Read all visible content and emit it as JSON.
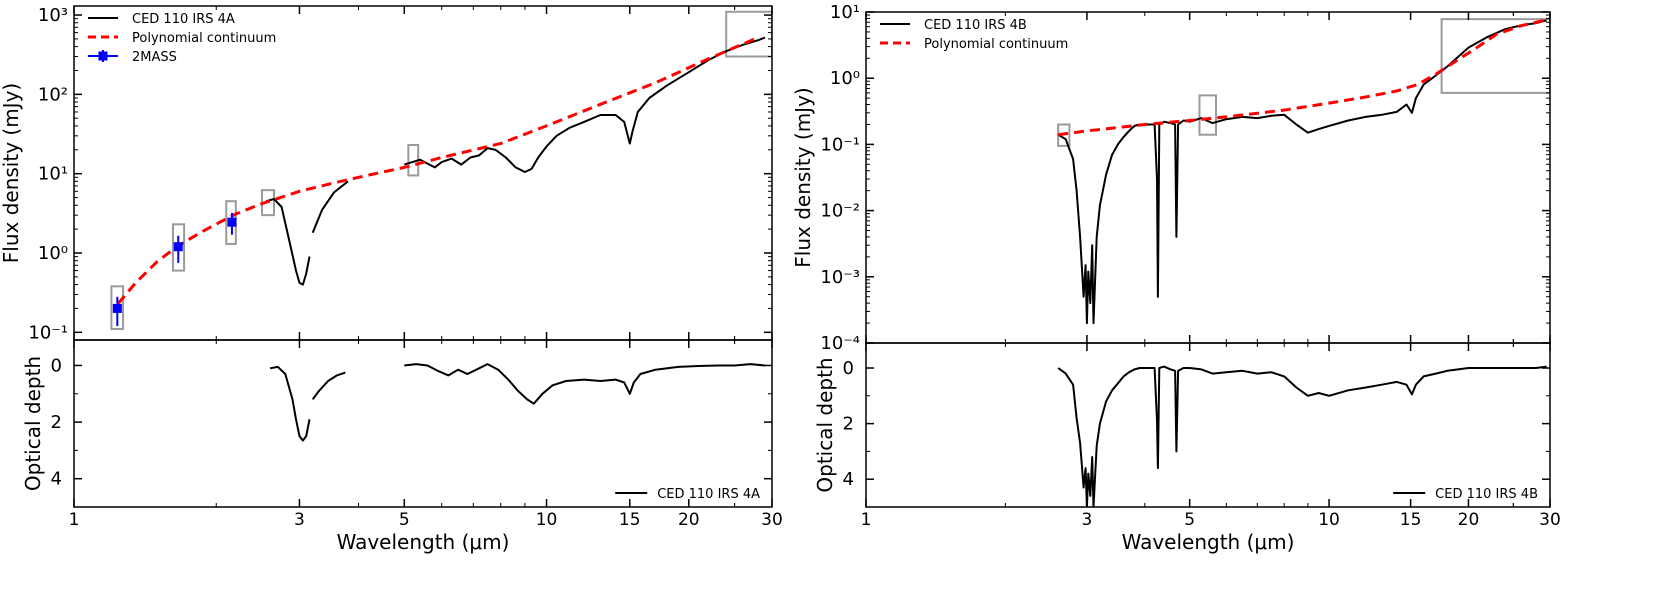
{
  "chart_data": [
    {
      "type": "line",
      "panel": "left",
      "xlabel": "Wavelength (μm)",
      "xscale": "log",
      "xlim": [
        1,
        30
      ],
      "xticks": [
        1,
        3,
        5,
        10,
        15,
        20,
        30
      ],
      "xtick_labels": [
        "1",
        "3",
        "5",
        "10",
        "15",
        "20",
        "30"
      ],
      "top": {
        "ylabel": "Flux density (mJy)",
        "yscale": "log",
        "ylim": [
          0.08,
          1300
        ],
        "yticks": [
          0.1,
          1,
          10,
          100,
          1000
        ],
        "ytick_labels": [
          "10⁻¹",
          "10⁰",
          "10¹",
          "10²",
          "10³"
        ],
        "legend_position": "top-left",
        "legend": [
          "CED 110 IRS 4A",
          "Polynomial continuum",
          "2MASS"
        ],
        "series": [
          {
            "name": "CED 110 IRS 4A",
            "style": "black-solid",
            "segments": [
              {
                "x": [
                  2.55,
                  2.65,
                  2.75,
                  2.85,
                  2.95,
                  3.0,
                  3.05,
                  3.1,
                  3.15
                ],
                "y": [
                  4.5,
                  4.8,
                  3.8,
                  1.5,
                  0.6,
                  0.42,
                  0.4,
                  0.55,
                  0.9
                ]
              },
              {
                "x": [
                  3.2,
                  3.35,
                  3.55,
                  3.8
                ],
                "y": [
                  1.8,
                  3.5,
                  5.8,
                  8.0
                ]
              },
              {
                "x": [
                  5.0,
                  5.4,
                  5.8,
                  6.0,
                  6.3,
                  6.6,
                  6.9,
                  7.2,
                  7.5,
                  7.8,
                  8.2,
                  8.6,
                  9.0,
                  9.3,
                  9.6,
                  10.0,
                  10.5,
                  11.2,
                  12.0,
                  13.0,
                  14.0,
                  14.6,
                  15.0,
                  15.2,
                  15.6,
                  16.5,
                  18.0,
                  20.0,
                  22.0,
                  24.0,
                  26.0,
                  28.0,
                  29.0
                ],
                "y": [
                  13.0,
                  15.0,
                  12.0,
                  14.0,
                  15.5,
                  13.0,
                  16.0,
                  17.0,
                  21.0,
                  20.0,
                  16.0,
                  12.0,
                  10.5,
                  11.5,
                  16.0,
                  22.0,
                  30.0,
                  38.0,
                  45.0,
                  55.0,
                  55.0,
                  45.0,
                  24.0,
                  34.0,
                  60.0,
                  90.0,
                  130.0,
                  190.0,
                  270.0,
                  350.0,
                  420.0,
                  480.0,
                  520.0
                ]
              }
            ]
          },
          {
            "name": "Polynomial continuum",
            "style": "red-dashed",
            "x": [
              1.24,
              1.35,
              1.5,
              1.65,
              1.85,
              2.05,
              2.2,
              2.5,
              3.0,
              3.5,
              4.0,
              5.0,
              6.0,
              8.0,
              10.0,
              13.0,
              17.0,
              22.0,
              28.0
            ],
            "y": [
              0.23,
              0.42,
              0.78,
              1.2,
              1.8,
              2.5,
              3.1,
              4.2,
              6.0,
              7.5,
              9.0,
              12.0,
              16.0,
              24.0,
              40.0,
              75.0,
              140.0,
              280.0,
              520.0
            ]
          },
          {
            "name": "2MASS",
            "style": "blue-squares",
            "x": [
              1.235,
              1.662,
              2.159
            ],
            "y": [
              0.2,
              1.2,
              2.45
            ],
            "yerr_low": [
              0.12,
              0.75,
              1.7
            ],
            "yerr_high": [
              0.28,
              1.65,
              3.2
            ]
          }
        ],
        "boxes": [
          {
            "x": [
              1.2,
              1.27
            ],
            "y": [
              0.11,
              0.38
            ]
          },
          {
            "x": [
              1.62,
              1.71
            ],
            "y": [
              0.6,
              2.3
            ]
          },
          {
            "x": [
              2.1,
              2.2
            ],
            "y": [
              1.3,
              4.5
            ]
          },
          {
            "x": [
              2.5,
              2.65
            ],
            "y": [
              3.0,
              6.2
            ]
          },
          {
            "x": [
              5.1,
              5.35
            ],
            "y": [
              9.5,
              23.0
            ]
          },
          {
            "x": [
              24.0,
              30.0
            ],
            "y": [
              300.0,
              1100.0
            ]
          }
        ]
      },
      "bottom": {
        "ylabel": "Optical depth",
        "ylim": [
          5,
          -0.9
        ],
        "yticks": [
          0,
          2,
          4
        ],
        "ytick_labels": [
          "0",
          "2",
          "4"
        ],
        "legend_position": "bottom-right",
        "legend": [
          "CED 110 IRS 4A"
        ],
        "series": [
          {
            "name": "CED 110 IRS 4A",
            "style": "black-solid",
            "segments": [
              {
                "x": [
                  2.6,
                  2.7,
                  2.8,
                  2.9,
                  2.95,
                  3.0,
                  3.05,
                  3.1,
                  3.15
                ],
                "y": [
                  0.1,
                  0.05,
                  0.3,
                  1.2,
                  1.9,
                  2.5,
                  2.65,
                  2.5,
                  1.9
                ]
              },
              {
                "x": [
                  3.2,
                  3.3,
                  3.45,
                  3.6,
                  3.75
                ],
                "y": [
                  1.2,
                  0.9,
                  0.55,
                  0.35,
                  0.25
                ]
              },
              {
                "x": [
                  5.0,
                  5.3,
                  5.6,
                  5.9,
                  6.2,
                  6.5,
                  6.8,
                  7.1,
                  7.5,
                  7.9,
                  8.3,
                  8.7,
                  9.1,
                  9.4,
                  9.8,
                  10.3,
                  11.0,
                  12.0,
                  13.0,
                  14.0,
                  14.6,
                  15.0,
                  15.3,
                  15.8,
                  17.0,
                  19.0,
                  21.0,
                  23.0,
                  25.0,
                  27.0,
                  29.0
                ],
                "y": [
                  0.0,
                  -0.05,
                  0.0,
                  0.2,
                  0.35,
                  0.15,
                  0.3,
                  0.15,
                  -0.05,
                  0.15,
                  0.5,
                  0.9,
                  1.2,
                  1.35,
                  1.0,
                  0.7,
                  0.55,
                  0.5,
                  0.55,
                  0.5,
                  0.6,
                  1.0,
                  0.6,
                  0.3,
                  0.15,
                  0.05,
                  0.02,
                  0.0,
                  0.0,
                  -0.05,
                  0.0
                ]
              }
            ]
          }
        ]
      }
    },
    {
      "type": "line",
      "panel": "right",
      "xlabel": "Wavelength (μm)",
      "xscale": "log",
      "xlim": [
        1,
        30
      ],
      "xticks": [
        1,
        3,
        5,
        10,
        15,
        20,
        30
      ],
      "xtick_labels": [
        "1",
        "3",
        "5",
        "10",
        "15",
        "20",
        "30"
      ],
      "top": {
        "ylabel": "Flux density (mJy)",
        "yscale": "log",
        "ylim": [
          0.0001,
          10
        ],
        "yticks": [
          0.0001,
          0.001,
          0.01,
          0.1,
          1,
          10
        ],
        "ytick_labels": [
          "10⁻⁴",
          "10⁻³",
          "10⁻²",
          "10⁻¹",
          "10⁰",
          "10¹"
        ],
        "legend_position": "top-left",
        "legend": [
          "CED 110 IRS 4B",
          "Polynomial continuum"
        ],
        "series": [
          {
            "name": "CED 110 IRS 4B",
            "style": "black-solid",
            "segments": [
              {
                "x": [
                  2.6,
                  2.7,
                  2.8,
                  2.85,
                  2.9,
                  2.95,
                  2.98,
                  3.0,
                  3.02,
                  3.05,
                  3.08,
                  3.1,
                  3.15,
                  3.2,
                  3.3,
                  3.4,
                  3.5,
                  3.6,
                  3.7,
                  3.8,
                  3.9,
                  4.0,
                  4.1,
                  4.2,
                  4.25,
                  4.27,
                  4.3,
                  4.4,
                  4.55,
                  4.65,
                  4.68,
                  4.72,
                  4.85,
                  5.0,
                  5.3,
                  5.6,
                  6.0,
                  6.5,
                  7.0,
                  7.5,
                  8.0,
                  8.5,
                  9.0,
                  9.5,
                  10.0,
                  11.0,
                  12.0,
                  13.0,
                  14.0,
                  14.7,
                  15.1,
                  15.4,
                  16.0,
                  17.0,
                  18.0,
                  19.0,
                  20.0,
                  22.0,
                  24.0,
                  26.0,
                  28.0,
                  29.5
                ],
                "y": [
                  0.14,
                  0.12,
                  0.06,
                  0.02,
                  0.004,
                  0.0005,
                  0.0015,
                  0.0002,
                  0.0012,
                  0.0004,
                  0.003,
                  0.0002,
                  0.004,
                  0.012,
                  0.035,
                  0.07,
                  0.1,
                  0.13,
                  0.16,
                  0.19,
                  0.2,
                  0.2,
                  0.2,
                  0.2,
                  0.03,
                  0.0005,
                  0.2,
                  0.22,
                  0.21,
                  0.2,
                  0.004,
                  0.2,
                  0.23,
                  0.22,
                  0.25,
                  0.21,
                  0.24,
                  0.26,
                  0.25,
                  0.27,
                  0.28,
                  0.2,
                  0.15,
                  0.17,
                  0.19,
                  0.23,
                  0.26,
                  0.28,
                  0.31,
                  0.4,
                  0.3,
                  0.5,
                  0.8,
                  1.1,
                  1.5,
                  2.1,
                  2.9,
                  4.2,
                  5.5,
                  6.3,
                  6.8,
                  7.5
                ]
              }
            ]
          },
          {
            "name": "Polynomial continuum",
            "style": "red-dashed",
            "x": [
              2.6,
              3.0,
              3.5,
              4.0,
              5.0,
              6.0,
              8.0,
              10.0,
              12.0,
              14.0,
              15.5,
              17.0,
              19.0,
              21.0,
              23.0,
              26.0,
              29.5
            ],
            "y": [
              0.14,
              0.16,
              0.18,
              0.2,
              0.23,
              0.26,
              0.33,
              0.42,
              0.52,
              0.64,
              0.8,
              1.15,
              1.9,
              3.0,
              4.6,
              6.2,
              7.6
            ]
          }
        ],
        "boxes": [
          {
            "x": [
              2.6,
              2.75
            ],
            "y": [
              0.095,
              0.2
            ]
          },
          {
            "x": [
              5.25,
              5.7
            ],
            "y": [
              0.14,
              0.55
            ]
          },
          {
            "x": [
              17.5,
              30.0
            ],
            "y": [
              0.6,
              7.8
            ]
          }
        ]
      },
      "bottom": {
        "ylabel": "Optical depth",
        "ylim": [
          5,
          -0.9
        ],
        "yticks": [
          0,
          2,
          4
        ],
        "ytick_labels": [
          "0",
          "2",
          "4"
        ],
        "legend_position": "bottom-right",
        "legend": [
          "CED 110 IRS 4B"
        ],
        "series": [
          {
            "name": "CED 110 IRS 4B",
            "style": "black-solid",
            "segments": [
              {
                "x": [
                  2.6,
                  2.7,
                  2.8,
                  2.85,
                  2.9,
                  2.95,
                  2.98,
                  3.0,
                  3.02,
                  3.05,
                  3.08,
                  3.1,
                  3.15,
                  3.2,
                  3.3,
                  3.4,
                  3.5,
                  3.6,
                  3.7,
                  3.8,
                  3.9,
                  4.0,
                  4.1,
                  4.2,
                  4.25,
                  4.27,
                  4.3,
                  4.4,
                  4.55,
                  4.65,
                  4.68,
                  4.72,
                  4.85,
                  5.0,
                  5.3,
                  5.6,
                  6.0,
                  6.5,
                  7.0,
                  7.5,
                  8.0,
                  8.5,
                  9.0,
                  9.5,
                  10.0,
                  11.0,
                  12.0,
                  13.0,
                  14.0,
                  14.7,
                  15.1,
                  15.4,
                  16.0,
                  17.0,
                  18.0,
                  19.0,
                  20.0,
                  22.0,
                  24.0,
                  26.0,
                  28.0,
                  29.5
                ],
                "y": [
                  0.0,
                  0.2,
                  0.6,
                  1.8,
                  2.7,
                  4.3,
                  3.6,
                  5.0,
                  3.8,
                  4.6,
                  3.2,
                  5.0,
                  2.8,
                  2.0,
                  1.2,
                  0.8,
                  0.55,
                  0.3,
                  0.15,
                  0.05,
                  0.0,
                  0.0,
                  0.0,
                  0.0,
                  1.9,
                  3.6,
                  0.0,
                  -0.05,
                  0.05,
                  0.1,
                  3.0,
                  0.1,
                  0.0,
                  0.0,
                  0.05,
                  0.2,
                  0.15,
                  0.1,
                  0.2,
                  0.15,
                  0.3,
                  0.7,
                  1.0,
                  0.9,
                  1.0,
                  0.8,
                  0.7,
                  0.6,
                  0.5,
                  0.6,
                  0.95,
                  0.6,
                  0.3,
                  0.2,
                  0.1,
                  0.05,
                  0.0,
                  0.0,
                  0.0,
                  0.0,
                  0.0,
                  -0.05
                ]
              }
            ]
          }
        ]
      }
    }
  ]
}
